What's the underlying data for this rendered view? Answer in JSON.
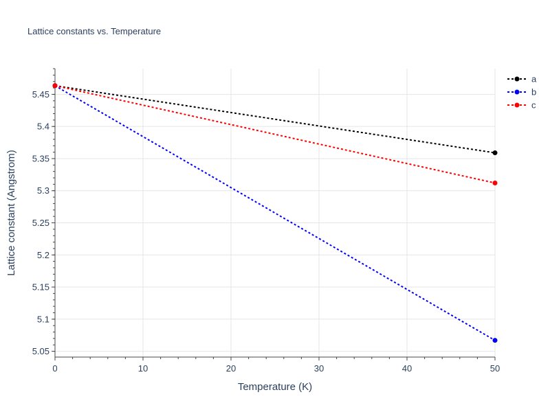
{
  "chart_data": {
    "type": "line",
    "title": "Lattice constants vs. Temperature",
    "xlabel": "Temperature (K)",
    "ylabel": "Lattice constant (Angstrom)",
    "xlim": [
      0,
      50
    ],
    "ylim": [
      5.041,
      5.49
    ],
    "xticks": [
      0,
      10,
      20,
      30,
      40,
      50
    ],
    "yticks": [
      5.05,
      5.1,
      5.15,
      5.2,
      5.25,
      5.3,
      5.35,
      5.4,
      5.45
    ],
    "grid": true,
    "legend_position": "top-right",
    "series": [
      {
        "name": "a",
        "color": "#000000",
        "x": [
          0,
          50
        ],
        "y": [
          5.4635,
          5.359
        ]
      },
      {
        "name": "b",
        "color": "#0000ff",
        "x": [
          0,
          50
        ],
        "y": [
          5.4635,
          5.067
        ]
      },
      {
        "name": "c",
        "color": "#ff0000",
        "x": [
          0,
          50
        ],
        "y": [
          5.4635,
          5.312
        ]
      }
    ]
  }
}
